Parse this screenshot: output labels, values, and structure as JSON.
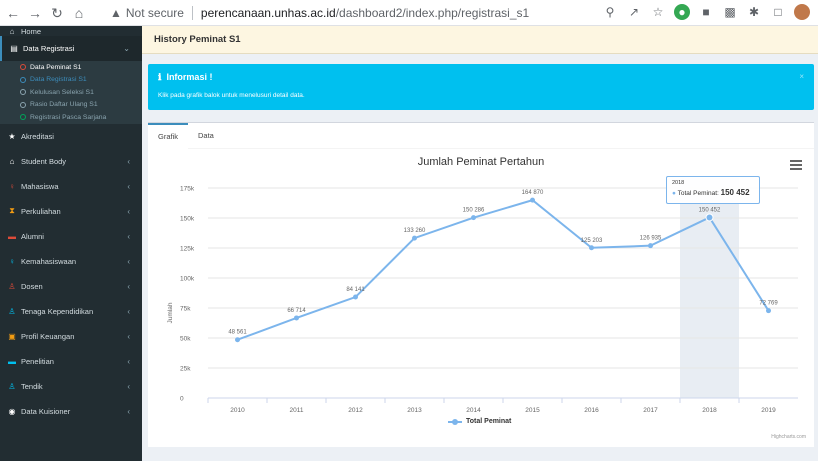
{
  "browser": {
    "security_label": "Not secure",
    "url_host": "perencanaan.unhas.ac.id",
    "url_path": "/dashboard2/index.php/registrasi_s1"
  },
  "sidebar": {
    "top_item": "Home",
    "group": {
      "label": "Data Registrasi",
      "subitems": [
        {
          "label": "Data Peminat S1",
          "state": "current"
        },
        {
          "label": "Data Registrasi S1",
          "state": "blue"
        },
        {
          "label": "Kelulusan Seleksi S1",
          "state": "normal"
        },
        {
          "label": "Rasio Daftar Ulang S1",
          "state": "normal"
        },
        {
          "label": "Registrasi Pasca Sarjana",
          "state": "green"
        }
      ]
    },
    "items": [
      {
        "label": "Akreditasi",
        "icon": "star-icon",
        "icon_color": "#ffffff",
        "chev": false
      },
      {
        "label": "Student Body",
        "icon": "home-icon",
        "icon_color": "#ffffff",
        "chev": true
      },
      {
        "label": "Mahasiswa",
        "icon": "person-icon",
        "icon_color": "#dd4b39",
        "chev": true
      },
      {
        "label": "Perkuliahan",
        "icon": "hourglass-icon",
        "icon_color": "#f39c12",
        "chev": true
      },
      {
        "label": "Alumni",
        "icon": "graduation-icon",
        "icon_color": "#dd4b39",
        "chev": true
      },
      {
        "label": "Kemahasiswaan",
        "icon": "person-icon",
        "icon_color": "#00c0ef",
        "chev": true
      },
      {
        "label": "Dosen",
        "icon": "user-icon",
        "icon_color": "#dd4b39",
        "chev": true
      },
      {
        "label": "Tenaga Kependidikan",
        "icon": "user-icon",
        "icon_color": "#00c0ef",
        "chev": true
      },
      {
        "label": "Profil Keuangan",
        "icon": "money-icon",
        "icon_color": "#f39c12",
        "chev": true
      },
      {
        "label": "Penelitian",
        "icon": "folder-icon",
        "icon_color": "#00c0ef",
        "chev": true
      },
      {
        "label": "Tendik",
        "icon": "user-icon",
        "icon_color": "#00c0ef",
        "chev": true
      },
      {
        "label": "Data Kuisioner",
        "icon": "circle-icon",
        "icon_color": "#ffffff",
        "chev": true
      }
    ]
  },
  "header": {
    "title": "History Peminat S1"
  },
  "callout": {
    "title": "Informasi !",
    "body": "Klik pada grafik balok untuk menelusuri detail data.",
    "close": "×"
  },
  "tabs": [
    {
      "label": "Grafik",
      "active": true
    },
    {
      "label": "Data",
      "active": false
    }
  ],
  "chart_data": {
    "type": "line",
    "title": "Jumlah Peminat Pertahun",
    "ylabel": "Jumlah",
    "xlabel": "",
    "categories": [
      "2010",
      "2011",
      "2012",
      "2013",
      "2014",
      "2015",
      "2016",
      "2017",
      "2018",
      "2019"
    ],
    "series": [
      {
        "name": "Total Peminat",
        "color": "#7cb5ec",
        "values": [
          48561,
          66714,
          84141,
          133260,
          150286,
          164870,
          125203,
          126935,
          150452,
          72769
        ],
        "labels": [
          "48 561",
          "66 714",
          "84 141",
          "133 260",
          "150 286",
          "164 870",
          "125 203",
          "126 935",
          "150 452",
          "72 769"
        ]
      }
    ],
    "ylim": [
      0,
      175000
    ],
    "yticks": [
      "0",
      "25k",
      "50k",
      "75k",
      "100k",
      "125k",
      "150k",
      "175k"
    ],
    "ytick_values": [
      0,
      25000,
      50000,
      75000,
      100000,
      125000,
      150000,
      175000
    ],
    "highlight_category": "2018",
    "tooltip": {
      "header": "2018",
      "series": "Total Peminat",
      "value": "150 452"
    },
    "credits": "Highcharts.com"
  }
}
